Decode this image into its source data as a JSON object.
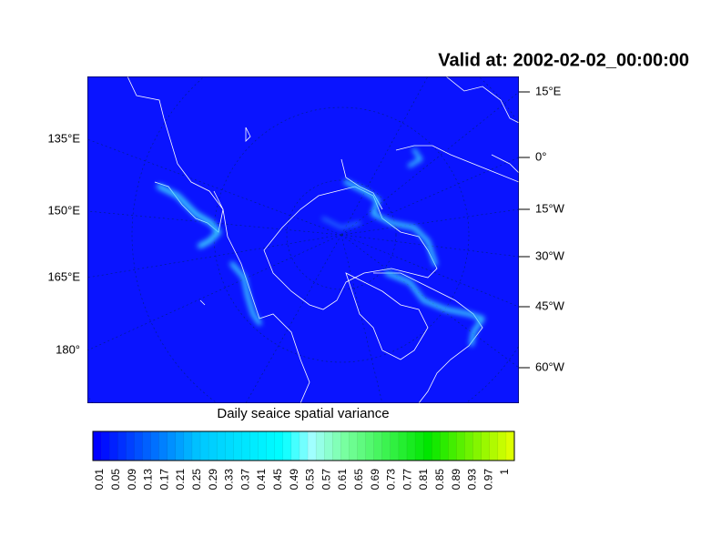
{
  "title": "Valid at: 2002-02-02_00:00:00",
  "map": {
    "left_labels": [
      "135°E",
      "150°E",
      "165°E",
      "180°"
    ],
    "right_labels": [
      "15°E",
      "0°",
      "15°W",
      "30°W",
      "45°W",
      "60°W"
    ]
  },
  "colorbar": {
    "label": "Daily seaice spatial variance",
    "ticks": [
      0.01,
      0.05,
      0.09,
      0.13,
      0.17,
      0.21,
      0.25,
      0.29,
      0.33,
      0.37,
      0.41,
      0.45,
      0.49,
      0.53,
      0.57,
      0.61,
      0.65,
      0.69,
      0.73,
      0.77,
      0.81,
      0.85,
      0.89,
      0.93,
      0.97,
      1
    ]
  }
}
